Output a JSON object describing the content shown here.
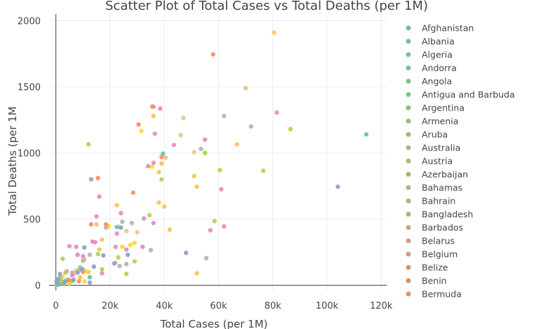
{
  "colors": {
    "grid": "#ececec",
    "zero_line": "#444444",
    "background": "#ffffff",
    "text": "#444444"
  },
  "legend_position": "right",
  "chart_data": {
    "type": "scatter",
    "title": "Scatter Plot of Total Cases vs Total Deaths (per 1M)",
    "xlabel": "Total Cases (per 1M)",
    "ylabel": "Total Deaths (per 1M",
    "xlim": [
      -2500,
      122000
    ],
    "ylim": [
      -40,
      2050
    ],
    "grid": true,
    "x_ticks": [
      0,
      20000,
      40000,
      60000,
      80000,
      100000,
      120000
    ],
    "x_tick_labels": [
      "0",
      "20k",
      "40k",
      "60k",
      "80k",
      "100k",
      "120k"
    ],
    "y_ticks": [
      0,
      500,
      1000,
      1500,
      2000
    ],
    "y_tick_labels": [
      "0",
      "500",
      "1000",
      "1500",
      "2000"
    ],
    "legend": [
      {
        "name": "Afghanistan",
        "color": "#66c2a5"
      },
      {
        "name": "Albania",
        "color": "#6ac2a0"
      },
      {
        "name": "Algeria",
        "color": "#70c29a"
      },
      {
        "name": "Andorra",
        "color": "#76c195"
      },
      {
        "name": "Angola",
        "color": "#7cc08f"
      },
      {
        "name": "Antigua and Barbuda",
        "color": "#83bf8a"
      },
      {
        "name": "Argentina",
        "color": "#89be85"
      },
      {
        "name": "Armenia",
        "color": "#90bd80"
      },
      {
        "name": "Aruba",
        "color": "#97bc7c"
      },
      {
        "name": "Australia",
        "color": "#a3b987"
      },
      {
        "name": "Austria",
        "color": "#abb78a"
      },
      {
        "name": "Azerbaijan",
        "color": "#a6b572"
      },
      {
        "name": "Bahamas",
        "color": "#b6ae87"
      },
      {
        "name": "Bahrain",
        "color": "#bcab85"
      },
      {
        "name": "Bangladesh",
        "color": "#c3a57f"
      },
      {
        "name": "Barbados",
        "color": "#c9a483"
      },
      {
        "name": "Belarus",
        "color": "#cea07f"
      },
      {
        "name": "Belgium",
        "color": "#d39c77"
      },
      {
        "name": "Belize",
        "color": "#e0905c"
      },
      {
        "name": "Benin",
        "color": "#e38c5c"
      },
      {
        "name": "Bermuda",
        "color": "#e88e68"
      }
    ],
    "series": [
      {
        "color": "#fcc05a",
        "points": [
          [
            80500,
            1910
          ],
          [
            70000,
            1490
          ],
          [
            66800,
            1065
          ],
          [
            36000,
            1280
          ],
          [
            51000,
            825
          ],
          [
            52000,
            745
          ],
          [
            38000,
            855
          ],
          [
            39000,
            920
          ],
          [
            52000,
            90
          ],
          [
            42000,
            420
          ],
          [
            38000,
            625
          ],
          [
            40000,
            595
          ],
          [
            22500,
            605
          ],
          [
            17000,
            345
          ],
          [
            16000,
            270
          ],
          [
            12000,
            100
          ],
          [
            9000,
            60
          ],
          [
            6500,
            80
          ]
        ]
      },
      {
        "color": "#ffd92f",
        "points": [
          [
            31500,
            1165
          ],
          [
            35500,
            895
          ],
          [
            29000,
            320
          ],
          [
            27500,
            305
          ],
          [
            24500,
            290
          ],
          [
            23500,
            440
          ],
          [
            19500,
            445
          ],
          [
            11500,
            105
          ],
          [
            4500,
            30
          ],
          [
            2500,
            65
          ],
          [
            10500,
            30
          ],
          [
            5000,
            15
          ]
        ]
      },
      {
        "color": "#e5c494",
        "points": [
          [
            70000,
            1490
          ],
          [
            51000,
            1005
          ],
          [
            46000,
            1135
          ],
          [
            47000,
            1265
          ],
          [
            55000,
            1000
          ],
          [
            40500,
            965
          ],
          [
            30000,
            400
          ],
          [
            26000,
            410
          ],
          [
            22000,
            170
          ],
          [
            15000,
            460
          ],
          [
            10500,
            195
          ],
          [
            7500,
            110
          ],
          [
            4000,
            40
          ],
          [
            2000,
            20
          ]
        ]
      },
      {
        "color": "#b3b3b3",
        "points": [
          [
            72000,
            1200
          ],
          [
            62000,
            1280
          ],
          [
            55500,
            205
          ],
          [
            53500,
            1030
          ],
          [
            35500,
            1350
          ],
          [
            35000,
            265
          ],
          [
            28000,
            470
          ],
          [
            24500,
            480
          ],
          [
            23500,
            145
          ],
          [
            26000,
            160
          ],
          [
            18500,
            435
          ],
          [
            12500,
            230
          ],
          [
            10000,
            185
          ],
          [
            9000,
            135
          ],
          [
            6000,
            95
          ],
          [
            5000,
            40
          ],
          [
            3000,
            25
          ],
          [
            1500,
            60
          ],
          [
            800,
            10
          ],
          [
            500,
            5
          ],
          [
            200,
            35
          ],
          [
            1200,
            40
          ]
        ]
      },
      {
        "color": "#e78ac3",
        "points": [
          [
            81500,
            1305
          ],
          [
            61000,
            725
          ],
          [
            62000,
            445
          ],
          [
            57000,
            415
          ],
          [
            55000,
            1100
          ],
          [
            43500,
            1060
          ],
          [
            36500,
            1145
          ],
          [
            38500,
            1335
          ],
          [
            36000,
            925
          ],
          [
            34000,
            900
          ],
          [
            36000,
            470
          ],
          [
            32500,
            505
          ],
          [
            32000,
            290
          ],
          [
            26000,
            270
          ],
          [
            24000,
            545
          ],
          [
            22500,
            390
          ],
          [
            22000,
            290
          ],
          [
            17000,
            90
          ],
          [
            16000,
            670
          ],
          [
            15000,
            520
          ],
          [
            14500,
            325
          ],
          [
            13500,
            330
          ],
          [
            10000,
            220
          ],
          [
            8000,
            230
          ],
          [
            7500,
            290
          ],
          [
            6000,
            75
          ],
          [
            5000,
            295
          ],
          [
            4000,
            105
          ],
          [
            2500,
            25
          ],
          [
            1000,
            15
          ]
        ]
      },
      {
        "color": "#a6d854",
        "points": [
          [
            86500,
            1180
          ],
          [
            76500,
            865
          ],
          [
            60500,
            870
          ],
          [
            58500,
            485
          ],
          [
            55000,
            1000
          ],
          [
            39000,
            800
          ],
          [
            34500,
            530
          ],
          [
            29000,
            180
          ],
          [
            26000,
            85
          ],
          [
            23000,
            210
          ],
          [
            15500,
            235
          ],
          [
            17000,
            120
          ],
          [
            12000,
            1065
          ],
          [
            10000,
            120
          ],
          [
            8500,
            115
          ],
          [
            6000,
            30
          ],
          [
            3500,
            95
          ],
          [
            2500,
            200
          ],
          [
            2000,
            35
          ],
          [
            1000,
            50
          ]
        ]
      },
      {
        "color": "#fc8d62",
        "points": [
          [
            58000,
            1745
          ],
          [
            36000,
            1350
          ],
          [
            30500,
            1215
          ],
          [
            39000,
            970
          ],
          [
            28500,
            700
          ],
          [
            18500,
            460
          ],
          [
            15500,
            810
          ],
          [
            13000,
            460
          ],
          [
            10000,
            100
          ],
          [
            8500,
            30
          ],
          [
            4500,
            40
          ],
          [
            3000,
            10
          ]
        ]
      },
      {
        "color": "#8da0cb",
        "points": [
          [
            104000,
            745
          ],
          [
            48000,
            245
          ],
          [
            24000,
            435
          ],
          [
            26500,
            230
          ],
          [
            21500,
            165
          ],
          [
            17500,
            225
          ],
          [
            14000,
            140
          ],
          [
            13000,
            800
          ],
          [
            12500,
            20
          ],
          [
            10500,
            285
          ],
          [
            9500,
            120
          ],
          [
            8000,
            95
          ],
          [
            6500,
            40
          ],
          [
            3500,
            30
          ],
          [
            1500,
            85
          ],
          [
            800,
            45
          ],
          [
            300,
            20
          ]
        ]
      },
      {
        "color": "#66c2a5",
        "points": [
          [
            114500,
            1140
          ],
          [
            39500,
            995
          ],
          [
            22500,
            440
          ],
          [
            12500,
            60
          ],
          [
            3000,
            15
          ],
          [
            1000,
            5
          ]
        ]
      }
    ]
  }
}
